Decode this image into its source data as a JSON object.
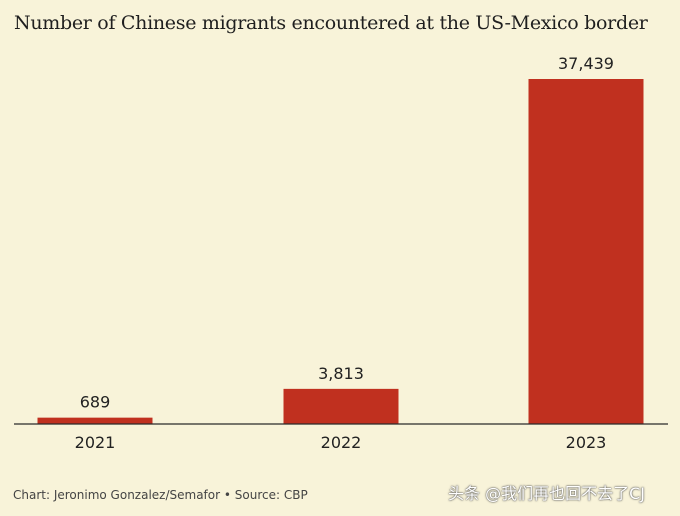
{
  "chart_data": {
    "type": "bar",
    "title": "Number of Chinese migrants encountered at the US-Mexico border",
    "categories": [
      "2021",
      "2022",
      "2023"
    ],
    "values": [
      689,
      3813,
      37439
    ],
    "value_labels": [
      "689",
      "3,813",
      "37,439"
    ],
    "xlabel": "",
    "ylabel": "",
    "ylim": [
      0,
      37439
    ],
    "grid": false,
    "bar_color": "#c0301f",
    "background_color": "#f8f3d9"
  },
  "footer": {
    "credit": "Chart: Jeronimo Gonzalez/Semafor • Source: CBP"
  },
  "watermark": {
    "text": "头条 @我们再也回不去了CJ"
  }
}
